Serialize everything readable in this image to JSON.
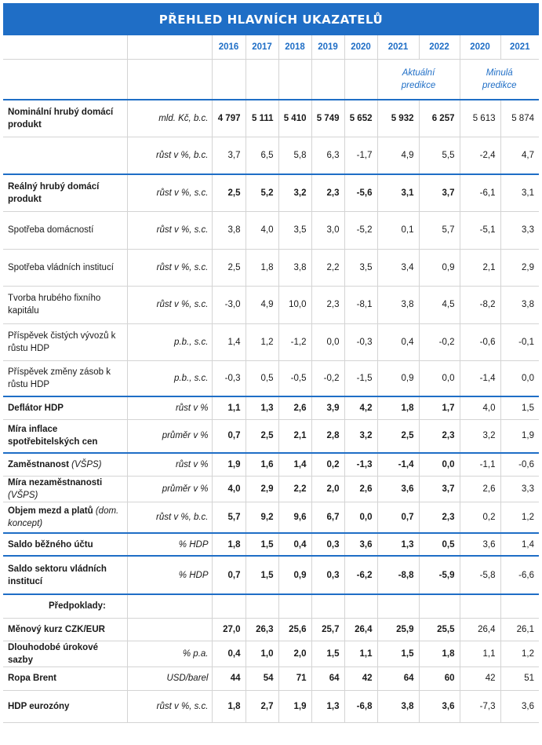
{
  "title": "PŘEHLED HLAVNÍCH UKAZATELŮ",
  "years": [
    "2016",
    "2017",
    "2018",
    "2019",
    "2020",
    "2021",
    "2022",
    "2020",
    "2021"
  ],
  "group_labels": {
    "current": "Aktuální predikce",
    "previous": "Minulá predikce"
  },
  "rows": [
    {
      "name": "Nominální hrubý domácí produkt",
      "unit": "mld. Kč, b.c.",
      "values": [
        "4 797",
        "5 111",
        "5 410",
        "5 749",
        "5 652",
        "5 932",
        "6 257",
        "5 613",
        "5 874"
      ]
    },
    {
      "name": "",
      "unit": "růst v %, b.c.",
      "values": [
        "3,7",
        "6,5",
        "5,8",
        "6,3",
        "-1,7",
        "4,9",
        "5,5",
        "-2,4",
        "4,7"
      ]
    },
    {
      "name": "Reálný hrubý domácí produkt",
      "unit": "růst v %, s.c.",
      "values": [
        "2,5",
        "5,2",
        "3,2",
        "2,3",
        "-5,6",
        "3,1",
        "3,7",
        "-6,1",
        "3,1"
      ]
    },
    {
      "name": "Spotřeba domácností",
      "unit": "růst v %, s.c.",
      "values": [
        "3,8",
        "4,0",
        "3,5",
        "3,0",
        "-5,2",
        "0,1",
        "5,7",
        "-5,1",
        "3,3"
      ]
    },
    {
      "name": "Spotřeba vládních institucí",
      "unit": "růst v %, s.c.",
      "values": [
        "2,5",
        "1,8",
        "3,8",
        "2,2",
        "3,5",
        "3,4",
        "0,9",
        "2,1",
        "2,9"
      ]
    },
    {
      "name": "Tvorba hrubého fixního kapitálu",
      "unit": "růst v %, s.c.",
      "values": [
        "-3,0",
        "4,9",
        "10,0",
        "2,3",
        "-8,1",
        "3,8",
        "4,5",
        "-8,2",
        "3,8"
      ]
    },
    {
      "name": "Příspěvek čistých vývozů k růstu HDP",
      "unit": "p.b., s.c.",
      "values": [
        "1,4",
        "1,2",
        "-1,2",
        "0,0",
        "-0,3",
        "0,4",
        "-0,2",
        "-0,6",
        "-0,1"
      ]
    },
    {
      "name": "Příspěvek změny zásob k růstu HDP",
      "unit": "p.b., s.c.",
      "values": [
        "-0,3",
        "0,5",
        "-0,5",
        "-0,2",
        "-1,5",
        "0,9",
        "0,0",
        "-1,4",
        "0,0"
      ]
    },
    {
      "name": "Deflátor HDP",
      "unit": "růst v %",
      "values": [
        "1,1",
        "1,3",
        "2,6",
        "3,9",
        "4,2",
        "1,8",
        "1,7",
        "4,0",
        "1,5"
      ]
    },
    {
      "name": "Míra inflace spotřebitelských cen",
      "unit": "průměr v %",
      "values": [
        "0,7",
        "2,5",
        "2,1",
        "2,8",
        "3,2",
        "2,5",
        "2,3",
        "3,2",
        "1,9"
      ]
    },
    {
      "name": "Zaměstnanost",
      "name_suffix": "(VŠPS)",
      "unit": "růst v %",
      "values": [
        "1,9",
        "1,6",
        "1,4",
        "0,2",
        "-1,3",
        "-1,4",
        "0,0",
        "-1,1",
        "-0,6"
      ]
    },
    {
      "name": "Míra nezaměstnanosti",
      "name_suffix": "(VŠPS)",
      "unit": "průměr v %",
      "values": [
        "4,0",
        "2,9",
        "2,2",
        "2,0",
        "2,6",
        "3,6",
        "3,7",
        "2,6",
        "3,3"
      ]
    },
    {
      "name": "Objem mezd a platů",
      "name_suffix": "(dom. koncept)",
      "unit": "růst v %, b.c.",
      "values": [
        "5,7",
        "9,2",
        "9,6",
        "6,7",
        "0,0",
        "0,7",
        "2,3",
        "0,2",
        "1,2"
      ]
    },
    {
      "name": "Saldo běžného účtu",
      "unit": "% HDP",
      "values": [
        "1,8",
        "1,5",
        "0,4",
        "0,3",
        "3,6",
        "1,3",
        "0,5",
        "3,6",
        "1,4"
      ]
    },
    {
      "name": "Saldo sektoru vládních institucí",
      "unit": "% HDP",
      "values": [
        "0,7",
        "1,5",
        "0,9",
        "0,3",
        "-6,2",
        "-8,8",
        "-5,9",
        "-5,8",
        "-6,6"
      ]
    },
    {
      "name": "Předpoklady:",
      "unit": "",
      "values": [
        "",
        "",
        "",
        "",
        "",
        "",
        "",
        "",
        ""
      ]
    },
    {
      "name": "Měnový kurz CZK/EUR",
      "unit": "",
      "values": [
        "27,0",
        "26,3",
        "25,6",
        "25,7",
        "26,4",
        "25,9",
        "25,5",
        "26,4",
        "26,1"
      ]
    },
    {
      "name": "Dlouhodobé úrokové sazby",
      "unit": "% p.a.",
      "values": [
        "0,4",
        "1,0",
        "2,0",
        "1,5",
        "1,1",
        "1,5",
        "1,8",
        "1,1",
        "1,2"
      ]
    },
    {
      "name": "Ropa Brent",
      "unit": "USD/barel",
      "values": [
        "44",
        "54",
        "71",
        "64",
        "42",
        "64",
        "60",
        "42",
        "51"
      ]
    },
    {
      "name": "HDP eurozóny",
      "unit": "růst v %, s.c.",
      "values": [
        "1,8",
        "2,7",
        "1,9",
        "1,3",
        "-6,8",
        "3,8",
        "3,6",
        "-7,3",
        "3,6"
      ]
    }
  ]
}
